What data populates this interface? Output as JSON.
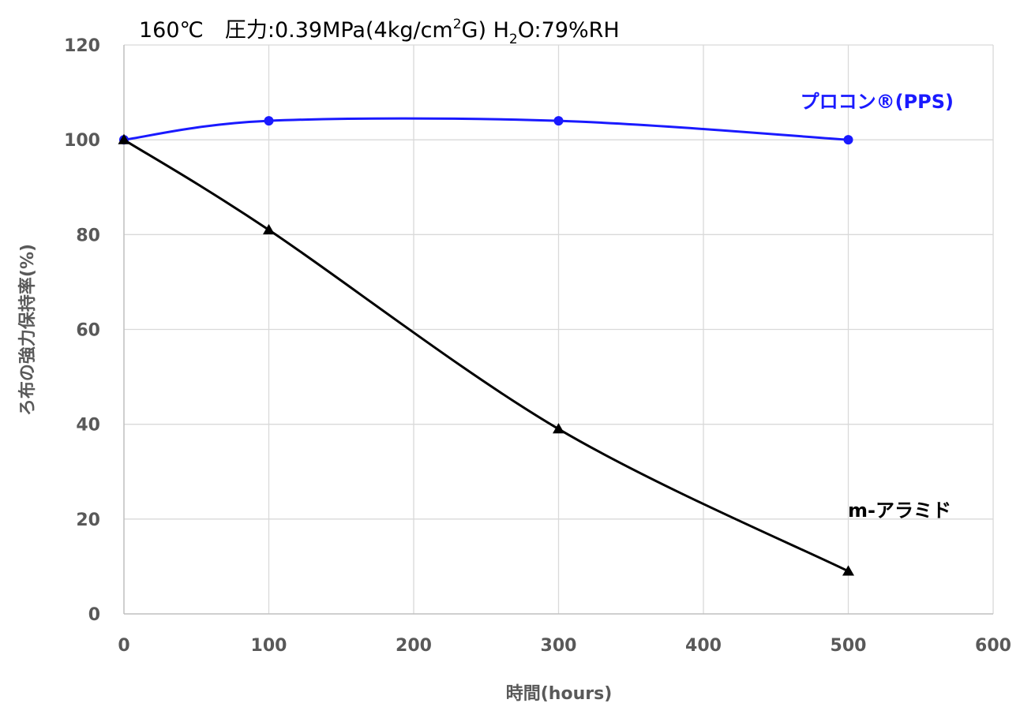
{
  "chart_data": {
    "type": "line",
    "title": "160℃　圧力:0.39MPa(4kg/cm2G)  H2O:79%RH",
    "title_parts": {
      "main": "160℃　圧力:0.39MPa(4kg/cm",
      "sup": "2",
      "mid": "G)  H",
      "sub": "2",
      "end": "O:79%RH"
    },
    "xlabel": "時間(hours)",
    "ylabel": "ろ布の強力保持率(%)",
    "xlim": [
      0,
      600
    ],
    "ylim": [
      0,
      120
    ],
    "xticks": [
      "0",
      "100",
      "200",
      "300",
      "400",
      "500",
      "600"
    ],
    "yticks": [
      "0",
      "20",
      "40",
      "60",
      "80",
      "100",
      "120"
    ],
    "grid": true,
    "legend": "inline labels",
    "series": [
      {
        "name": "プロコン®(PPS)",
        "color": "#1a1aff",
        "marker": "circle",
        "x": [
          0,
          100,
          300,
          500
        ],
        "y": [
          100,
          104,
          104,
          100
        ]
      },
      {
        "name": "m-アラミド",
        "color": "#000000",
        "marker": "triangle",
        "x": [
          0,
          100,
          300,
          500
        ],
        "y": [
          100,
          81,
          39,
          9
        ]
      }
    ]
  }
}
